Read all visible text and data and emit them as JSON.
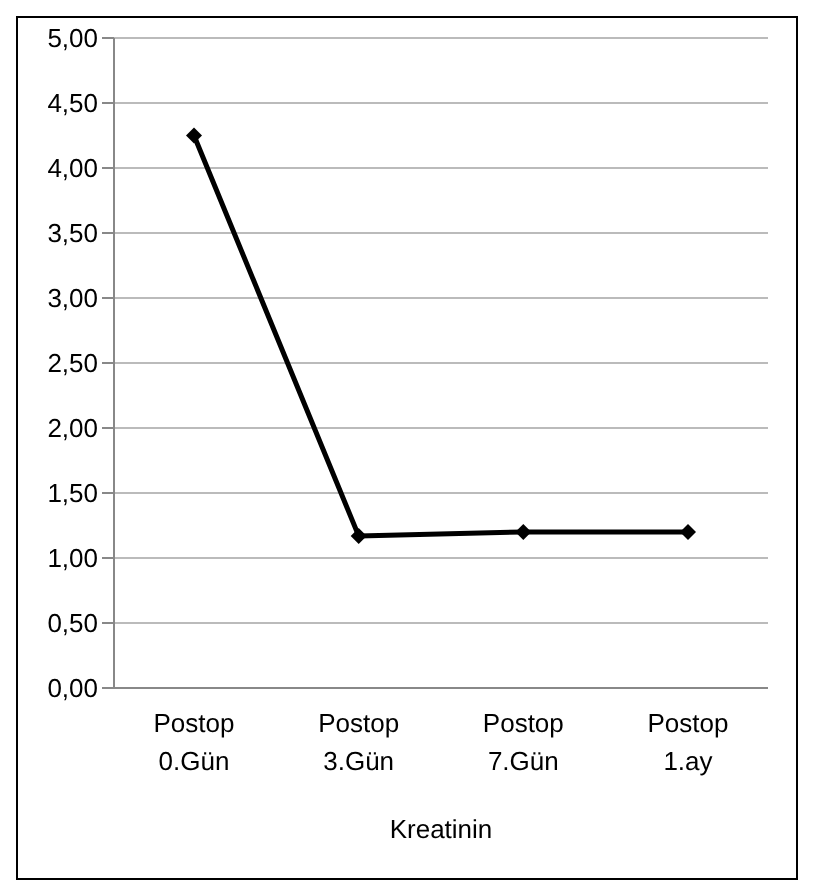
{
  "chart_data": {
    "type": "line",
    "xlabel": "Kreatinin",
    "categories": [
      "Postop 0.Gün",
      "Postop 3.Gün",
      "Postop 7.Gün",
      "Postop 1.ay"
    ],
    "series": [
      {
        "color": "#000000",
        "values": [
          4.25,
          1.17,
          1.2,
          1.2
        ]
      }
    ],
    "ylim": [
      0,
      5
    ],
    "yticks": [
      {
        "value": 0,
        "label": "0,00"
      },
      {
        "value": 0.5,
        "label": "0,50"
      },
      {
        "value": 1,
        "label": "1,00"
      },
      {
        "value": 1.5,
        "label": "1,50"
      },
      {
        "value": 2,
        "label": "2,00"
      },
      {
        "value": 2.5,
        "label": "2,50"
      },
      {
        "value": 3,
        "label": "3,00"
      },
      {
        "value": 3.5,
        "label": "3,50"
      },
      {
        "value": 4,
        "label": "4,00"
      },
      {
        "value": 4.5,
        "label": "4,50"
      },
      {
        "value": 5,
        "label": "5,00"
      }
    ],
    "grid": "y",
    "marker": "diamond",
    "line_style": "solid",
    "legend": false
  }
}
